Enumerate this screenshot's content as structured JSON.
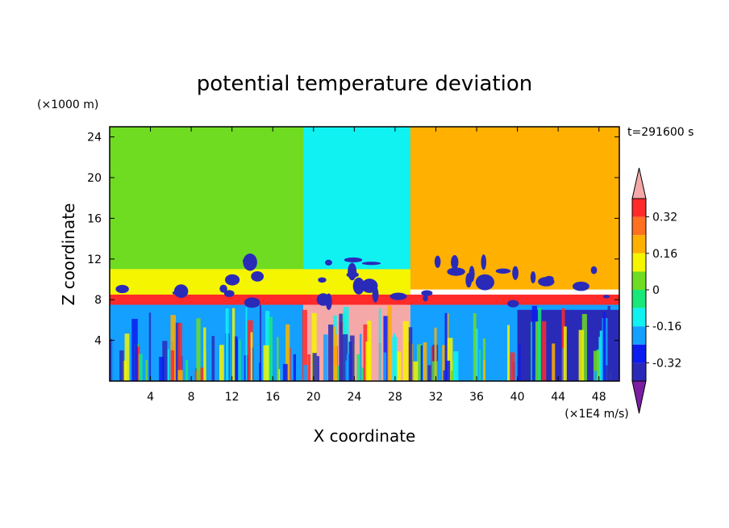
{
  "chart_data": {
    "type": "heatmap",
    "title": "potential temperature deviation",
    "xlabel": "X coordinate",
    "ylabel": "Z coordinate",
    "x_unit": "(×1E4 m/s)",
    "y_unit": "(×1000 m)",
    "time_label": "t=291600 s",
    "xlim": [
      0,
      50
    ],
    "ylim": [
      0,
      25
    ],
    "x_ticks": [
      4,
      8,
      12,
      16,
      20,
      24,
      28,
      32,
      36,
      40,
      44,
      48
    ],
    "y_ticks": [
      4,
      8,
      12,
      16,
      20,
      24
    ],
    "colorbar": {
      "tick_labels": [
        "0.32",
        "0.16",
        "0",
        "-0.16",
        "-0.32"
      ],
      "tick_values": [
        0.32,
        0.16,
        0,
        -0.16,
        -0.32
      ],
      "levels": [
        -0.4,
        -0.32,
        -0.24,
        -0.16,
        -0.08,
        0,
        0.08,
        0.16,
        0.24,
        0.32,
        0.4
      ],
      "colors": [
        "#7b1fa2",
        "#2a2ab8",
        "#0a1cf0",
        "#14a0ff",
        "#10f2f2",
        "#18e87a",
        "#6fdc22",
        "#f5f500",
        "#ffb000",
        "#ff7020",
        "#ff2a2a",
        "#f5a8a8"
      ]
    },
    "regions": [
      {
        "x": [
          0,
          50
        ],
        "z": [
          11,
          25
        ],
        "value": 0.02
      },
      {
        "x": [
          19,
          29.5
        ],
        "z": [
          9,
          25
        ],
        "value": -0.12
      },
      {
        "x": [
          29.5,
          50
        ],
        "z": [
          9,
          25
        ],
        "value": 0.2
      },
      {
        "x": [
          0,
          29.5
        ],
        "z": [
          8,
          11
        ],
        "value": 0.1
      },
      {
        "x": [
          0,
          50
        ],
        "z": [
          7.5,
          8.5
        ],
        "value": 0.38
      },
      {
        "x": [
          0,
          19
        ],
        "z": [
          0,
          7.5
        ],
        "value": -0.2
      },
      {
        "x": [
          19,
          29.5
        ],
        "z": [
          0,
          7.5
        ],
        "value": 0.4
      },
      {
        "x": [
          29.5,
          50
        ],
        "z": [
          0,
          7.5
        ],
        "value": -0.2
      },
      {
        "x": [
          40,
          50
        ],
        "z": [
          0,
          7
        ],
        "value": -0.4
      }
    ]
  }
}
